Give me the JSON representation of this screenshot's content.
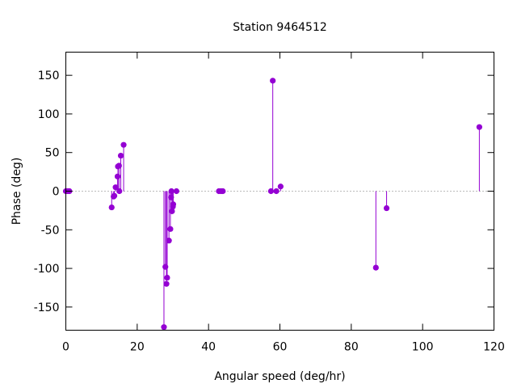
{
  "chart_data": {
    "type": "scatter",
    "style": "impulses-with-points",
    "title": "Station 9464512",
    "xlabel": "Angular speed (deg/hr)",
    "ylabel": "Phase (deg)",
    "xlim": [
      0,
      120
    ],
    "ylim": [
      -180,
      180
    ],
    "xticks": [
      0,
      20,
      40,
      60,
      80,
      100,
      120
    ],
    "yticks": [
      -150,
      -100,
      -50,
      0,
      50,
      100,
      150
    ],
    "zero_line": "dotted",
    "grid": false,
    "color": "#9400d3",
    "points": [
      {
        "x": 0.0,
        "y": 0
      },
      {
        "x": 0.5,
        "y": 0
      },
      {
        "x": 1.0,
        "y": 0
      },
      {
        "x": 12.85,
        "y": -21
      },
      {
        "x": 13.4,
        "y": -7
      },
      {
        "x": 13.6,
        "y": -6
      },
      {
        "x": 13.95,
        "y": 5
      },
      {
        "x": 14.5,
        "y": 19
      },
      {
        "x": 14.6,
        "y": 32
      },
      {
        "x": 14.9,
        "y": 33
      },
      {
        "x": 15.0,
        "y": 0
      },
      {
        "x": 15.4,
        "y": 46
      },
      {
        "x": 16.2,
        "y": 60
      },
      {
        "x": 27.5,
        "y": -176
      },
      {
        "x": 27.9,
        "y": -98
      },
      {
        "x": 28.2,
        "y": -120
      },
      {
        "x": 28.4,
        "y": -112
      },
      {
        "x": 28.9,
        "y": -64
      },
      {
        "x": 29.3,
        "y": -49
      },
      {
        "x": 29.5,
        "y": -8
      },
      {
        "x": 29.6,
        "y": 0
      },
      {
        "x": 29.75,
        "y": -26
      },
      {
        "x": 30.0,
        "y": -20
      },
      {
        "x": 30.1,
        "y": -17
      },
      {
        "x": 31.0,
        "y": 0
      },
      {
        "x": 42.9,
        "y": 0
      },
      {
        "x": 43.5,
        "y": 0
      },
      {
        "x": 44.0,
        "y": 0
      },
      {
        "x": 57.5,
        "y": 0
      },
      {
        "x": 58.0,
        "y": 143
      },
      {
        "x": 59.0,
        "y": 0
      },
      {
        "x": 60.2,
        "y": 6
      },
      {
        "x": 86.9,
        "y": -99
      },
      {
        "x": 89.9,
        "y": -22
      },
      {
        "x": 115.9,
        "y": 83
      }
    ]
  }
}
